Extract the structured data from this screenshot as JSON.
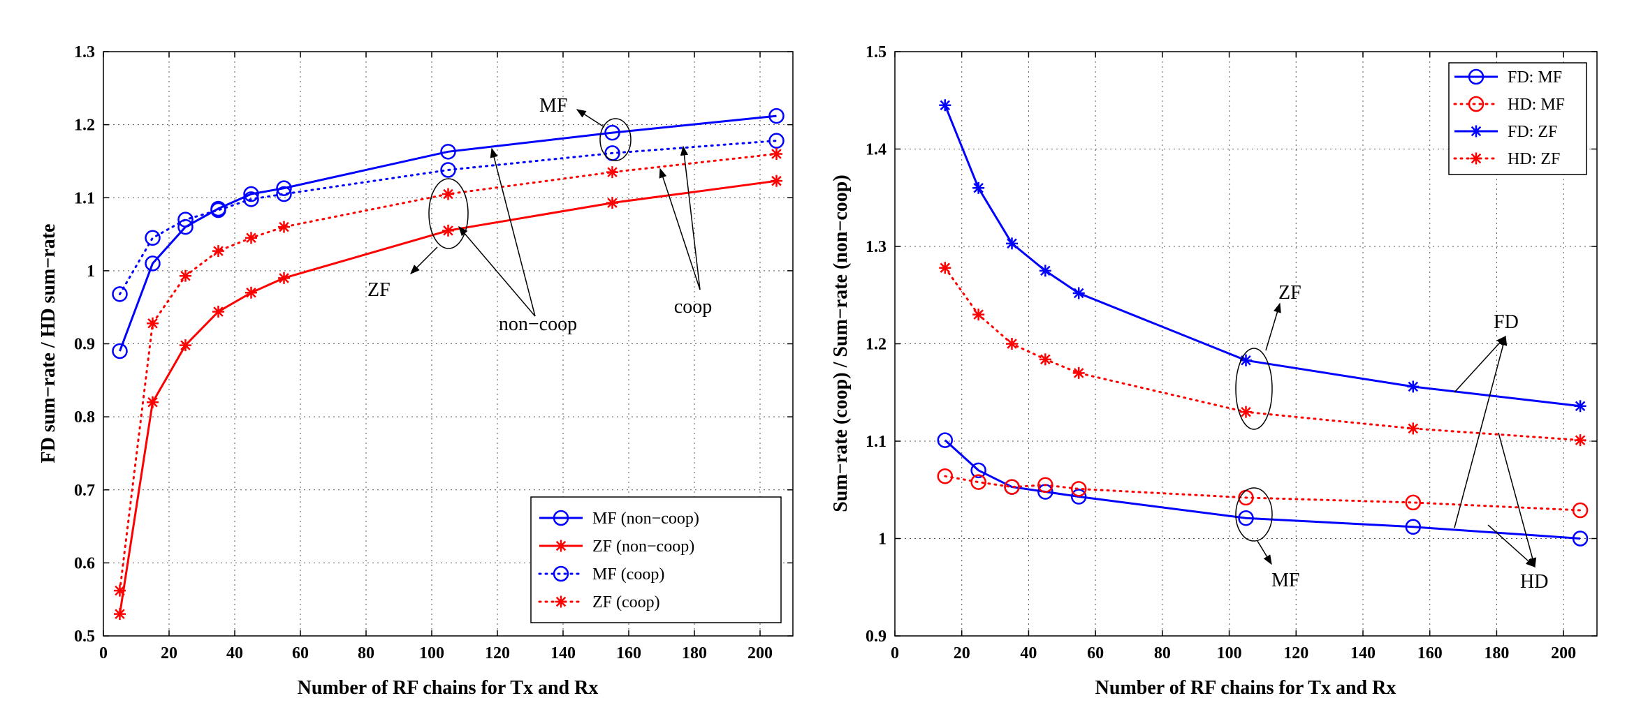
{
  "chart_data": [
    {
      "type": "line",
      "xlabel": "Number of RF chains for Tx and Rx",
      "ylabel": "FD sum−rate / HD sum−rate",
      "xlim": [
        0,
        210
      ],
      "ylim": [
        0.5,
        1.3
      ],
      "xticks": [
        0,
        20,
        40,
        60,
        80,
        100,
        120,
        140,
        160,
        180,
        200
      ],
      "yticks": [
        0.5,
        0.6,
        0.7,
        0.8,
        0.9,
        1,
        1.1,
        1.2,
        1.3
      ],
      "grid": true,
      "legend_position": "bottom-right",
      "series": [
        {
          "name": "MF (non−coop)",
          "color": "#0000ff",
          "style": "solid",
          "marker": "circle",
          "x": [
            5,
            15,
            25,
            35,
            45,
            55,
            105,
            155,
            205
          ],
          "y": [
            0.89,
            1.01,
            1.06,
            1.085,
            1.105,
            1.113,
            1.163,
            1.189,
            1.212
          ]
        },
        {
          "name": "ZF (non−coop)",
          "color": "#ff0000",
          "style": "solid",
          "marker": "star",
          "x": [
            5,
            15,
            25,
            35,
            45,
            55,
            105,
            155,
            205
          ],
          "y": [
            0.53,
            0.82,
            0.898,
            0.944,
            0.97,
            0.99,
            1.055,
            1.093,
            1.123
          ]
        },
        {
          "name": "MF (coop)",
          "color": "#0000ff",
          "style": "dotted",
          "marker": "circle",
          "x": [
            5,
            15,
            25,
            35,
            45,
            55,
            105,
            155,
            205
          ],
          "y": [
            0.968,
            1.045,
            1.07,
            1.083,
            1.098,
            1.105,
            1.138,
            1.161,
            1.178
          ]
        },
        {
          "name": "ZF (coop)",
          "color": "#ff0000",
          "style": "dotted",
          "marker": "star",
          "x": [
            5,
            15,
            25,
            35,
            45,
            55,
            105,
            155,
            205
          ],
          "y": [
            0.562,
            0.928,
            0.993,
            1.027,
            1.045,
            1.06,
            1.105,
            1.135,
            1.16
          ]
        }
      ],
      "annotations": [
        "MF",
        "ZF",
        "non−coop",
        "coop"
      ]
    },
    {
      "type": "line",
      "xlabel": "Number of RF chains for Tx and Rx",
      "ylabel": "Sum−rate (coop) / Sum−rate (non−coop)",
      "xlim": [
        0,
        210
      ],
      "ylim": [
        0.9,
        1.5
      ],
      "xticks": [
        0,
        20,
        40,
        60,
        80,
        100,
        120,
        140,
        160,
        180,
        200
      ],
      "yticks": [
        0.9,
        1,
        1.1,
        1.2,
        1.3,
        1.4,
        1.5
      ],
      "grid": true,
      "legend_position": "top-right",
      "series": [
        {
          "name": "FD: MF",
          "color": "#0000ff",
          "style": "solid",
          "marker": "circle",
          "x": [
            15,
            25,
            35,
            45,
            55,
            105,
            155,
            205
          ],
          "y": [
            1.101,
            1.07,
            1.053,
            1.048,
            1.043,
            1.021,
            1.012,
            1.0
          ]
        },
        {
          "name": "HD: MF",
          "color": "#ff0000",
          "style": "dotted",
          "marker": "circle",
          "x": [
            15,
            25,
            35,
            45,
            55,
            105,
            155,
            205
          ],
          "y": [
            1.064,
            1.058,
            1.053,
            1.055,
            1.051,
            1.042,
            1.037,
            1.029
          ]
        },
        {
          "name": "FD: ZF",
          "color": "#0000ff",
          "style": "solid",
          "marker": "star",
          "x": [
            15,
            25,
            35,
            45,
            55,
            105,
            155,
            205
          ],
          "y": [
            1.445,
            1.36,
            1.303,
            1.275,
            1.252,
            1.183,
            1.156,
            1.136
          ]
        },
        {
          "name": "HD: ZF",
          "color": "#ff0000",
          "style": "dotted",
          "marker": "star",
          "x": [
            15,
            25,
            35,
            45,
            55,
            105,
            155,
            205
          ],
          "y": [
            1.278,
            1.23,
            1.2,
            1.184,
            1.17,
            1.13,
            1.113,
            1.101
          ]
        }
      ],
      "annotations": [
        "ZF",
        "MF",
        "FD",
        "HD"
      ]
    }
  ]
}
